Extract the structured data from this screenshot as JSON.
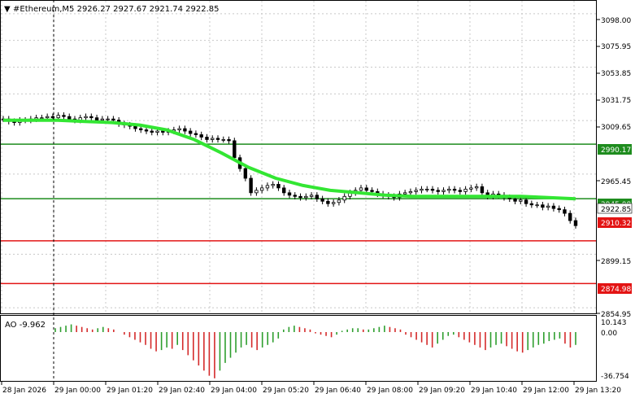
{
  "header": {
    "menu_arrow": "▼",
    "title": "#Ethereum,M5  2926.27 2927.67 2921.74 2922.85"
  },
  "price_axis": {
    "ticks": [
      "3098.00",
      "3075.95",
      "3053.85",
      "3031.75",
      "3009.65",
      "2965.45",
      "2899.15",
      "2854.95"
    ]
  },
  "levels": [
    {
      "price": "2990.17",
      "color": "#1e8c1e",
      "kind": "horizontal-line"
    },
    {
      "price": "2945.08",
      "color": "#1e8c1e",
      "kind": "horizontal-line"
    },
    {
      "price": "2910.32",
      "color": "#e31414",
      "kind": "horizontal-line"
    },
    {
      "price": "2874.98",
      "color": "#e31414",
      "kind": "horizontal-line"
    }
  ],
  "current_price": {
    "label": "2922.85"
  },
  "indicator": {
    "label": "AO -9.962",
    "scale_top": "10.143",
    "scale_zero": "0.00",
    "scale_bottom": "-36.754"
  },
  "time_axis": {
    "labels": [
      "28 Jan 2026",
      "29 Jan 00:00",
      "29 Jan 01:20",
      "29 Jan 02:40",
      "29 Jan 04:00",
      "29 Jan 05:20",
      "29 Jan 06:40",
      "29 Jan 08:00",
      "29 Jan 09:20",
      "29 Jan 10:40",
      "29 Jan 12:00",
      "29 Jan 13:20"
    ]
  },
  "colors": {
    "ma_line": "#33e633",
    "candle": "#000000",
    "ao_up": "#2e9e2e",
    "ao_down": "#d42a2a",
    "grid": "#c8c8c8"
  },
  "chart_data": {
    "type": "candlestick",
    "price_range": [
      2851,
      3108
    ],
    "series": [
      {
        "name": "Price path",
        "values": [
          3011,
          3009,
          3008,
          3010,
          3010,
          3011,
          3012,
          3012,
          3013,
          3012,
          3014,
          3013,
          3011,
          3010,
          3012,
          3013,
          3012,
          3010,
          3011,
          3011,
          3010,
          3007,
          3006,
          3005,
          3003,
          3002,
          3001,
          3000,
          3001,
          3000,
          3001,
          3002,
          3003,
          3001,
          2999,
          2998,
          2996,
          2994,
          2995,
          2994,
          2994,
          2993,
          2979,
          2970,
          2962,
          2950,
          2952,
          2954,
          2956,
          2957,
          2954,
          2950,
          2948,
          2947,
          2946,
          2947,
          2948,
          2945,
          2943,
          2941,
          2942,
          2944,
          2947,
          2950,
          2952,
          2954,
          2952,
          2951,
          2949,
          2948,
          2947,
          2946,
          2949,
          2950,
          2951,
          2952,
          2953,
          2953,
          2952,
          2951,
          2952,
          2953,
          2952,
          2951,
          2953,
          2954,
          2955,
          2950,
          2947,
          2949,
          2948,
          2946,
          2945,
          2943,
          2944,
          2941,
          2940,
          2940,
          2938,
          2939,
          2937,
          2936,
          2933,
          2927,
          2922.85
        ]
      },
      {
        "name": "Moving average",
        "values": [
          3010,
          3010,
          3010,
          3009,
          3008,
          3006,
          3002,
          2994,
          2983,
          2971,
          2962,
          2956,
          2952,
          2950,
          2948,
          2947,
          2947,
          2947,
          2947,
          2947,
          2946,
          2945
        ]
      }
    ],
    "ao_histogram": [
      3,
      4,
      5,
      6,
      5,
      4,
      3,
      2,
      3,
      4,
      3,
      2,
      0,
      -2,
      -4,
      -6,
      -8,
      -10,
      -13,
      -15,
      -14,
      -12,
      -13,
      -10,
      -14,
      -18,
      -22,
      -26,
      -30,
      -34,
      -36,
      -30,
      -24,
      -20,
      -16,
      -12,
      -10,
      -12,
      -14,
      -12,
      -10,
      -8,
      -5,
      2,
      4,
      5,
      4,
      3,
      2,
      -1,
      -2,
      -3,
      -4,
      -2,
      1,
      2,
      3,
      3,
      2,
      2,
      3,
      4,
      5,
      4,
      3,
      2,
      -2,
      -4,
      -6,
      -8,
      -10,
      -12,
      -9,
      -6,
      -3,
      -2,
      -4,
      -6,
      -8,
      -10,
      -12,
      -14,
      -12,
      -10,
      -9,
      -11,
      -13,
      -15,
      -16,
      -14,
      -12,
      -10,
      -9,
      -7,
      -6,
      -5,
      -9,
      -12,
      -10
    ]
  }
}
